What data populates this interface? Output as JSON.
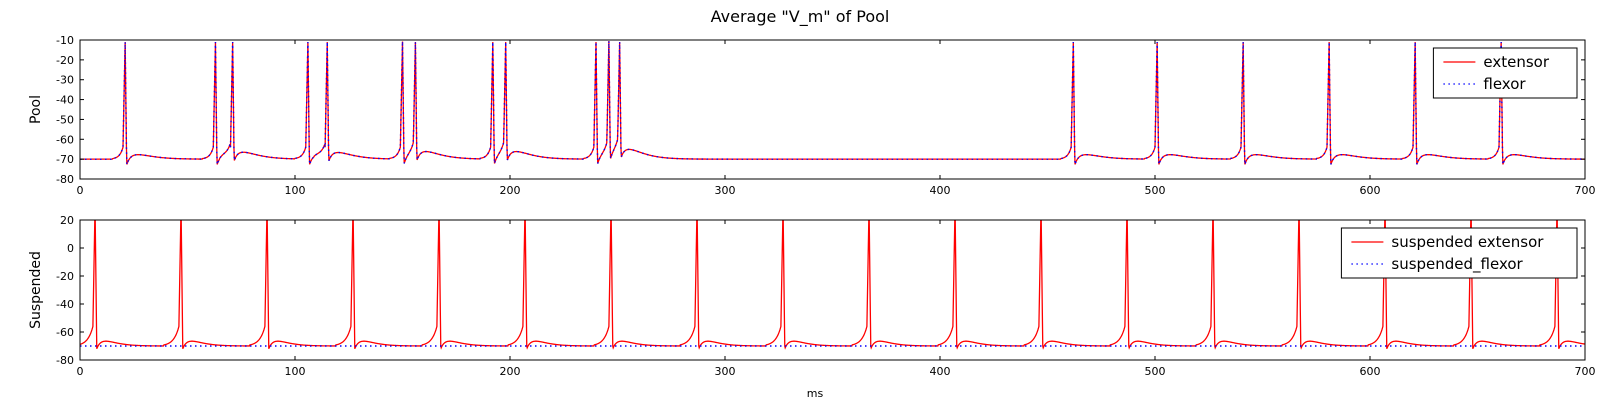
{
  "chart_data": [
    {
      "type": "line",
      "title": "Average \"V_m\" of Pool",
      "xlabel": "",
      "ylabel": "Pool",
      "xlim": [
        0,
        700
      ],
      "ylim": [
        -80,
        -10
      ],
      "xticks": [
        0,
        100,
        200,
        300,
        400,
        500,
        600,
        700
      ],
      "yticks": [
        -80,
        -70,
        -60,
        -50,
        -40,
        -30,
        -20,
        -10
      ],
      "legend_position": "top-right",
      "series": [
        {
          "name": "extensor",
          "color": "#ff0000",
          "style": "solid",
          "resting_mV": -70,
          "spike_peak_mV": -11,
          "spike_times_ms": [
            21,
            63,
            71,
            106,
            115,
            150,
            156,
            192,
            198,
            240,
            246,
            251,
            462,
            501,
            541,
            581,
            621,
            661
          ],
          "notable_points": [
            {
              "x": 0,
              "y": -70
            },
            {
              "x": 25,
              "y": -68
            },
            {
              "x": 160,
              "y": -63
            },
            {
              "x": 205,
              "y": -63
            },
            {
              "x": 255,
              "y": -64
            },
            {
              "x": 300,
              "y": -70
            },
            {
              "x": 450,
              "y": -70
            },
            {
              "x": 700,
              "y": -62
            }
          ]
        },
        {
          "name": "flexor",
          "color": "#0000ff",
          "style": "dotted",
          "resting_mV": -70,
          "spike_peak_mV": -11,
          "spike_times_ms": [
            21,
            63,
            71,
            106,
            115,
            150,
            156,
            192,
            198,
            240,
            246,
            251,
            462,
            501,
            541,
            581,
            621,
            661
          ]
        }
      ]
    },
    {
      "type": "line",
      "title": "",
      "xlabel": "ms",
      "ylabel": "Suspended",
      "xlim": [
        0,
        700
      ],
      "ylim": [
        -80,
        20
      ],
      "xticks": [
        0,
        100,
        200,
        300,
        400,
        500,
        600,
        700
      ],
      "yticks": [
        -80,
        -60,
        -40,
        -20,
        0,
        20
      ],
      "legend_position": "top-right",
      "series": [
        {
          "name": "suspended extensor",
          "color": "#ff0000",
          "style": "solid",
          "resting_mV": -70,
          "spike_peak_mV": 20,
          "spike_times_ms": [
            7,
            47,
            87,
            127,
            167,
            207,
            247,
            287,
            327,
            367,
            407,
            447,
            487,
            527,
            567,
            607,
            647,
            687
          ]
        },
        {
          "name": "suspended_flexor",
          "color": "#0000ff",
          "style": "dotted",
          "constant_mV": -70
        }
      ]
    }
  ]
}
